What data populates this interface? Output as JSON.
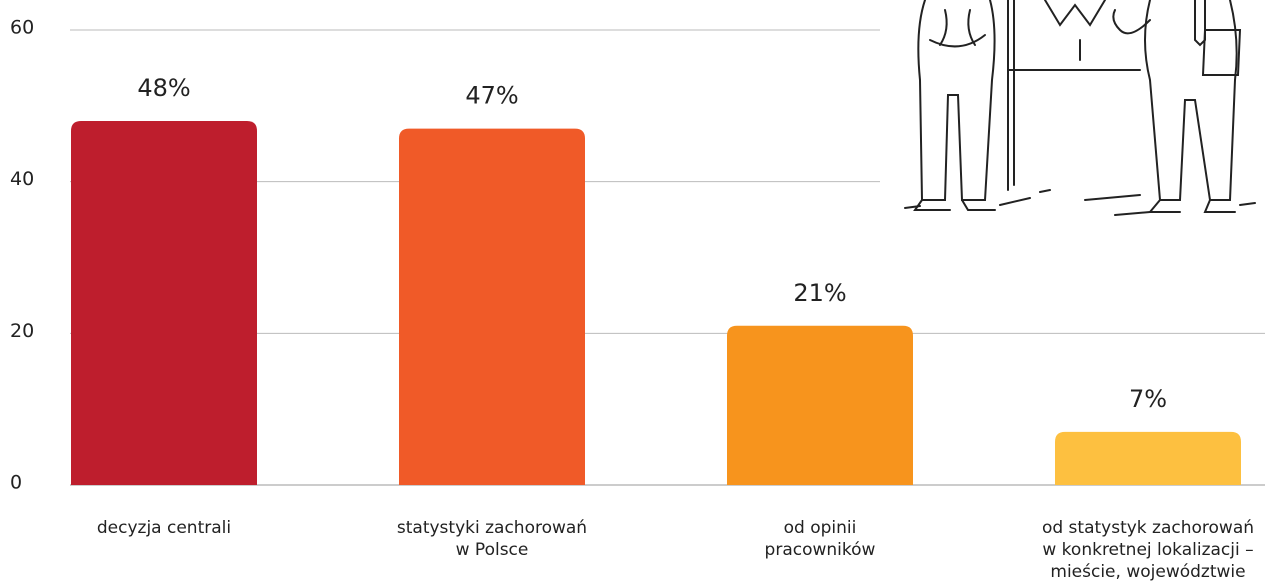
{
  "chart_data": {
    "type": "bar",
    "categories": [
      "decyzja centrali",
      "statystyki zachorowań\nw Polsce",
      "od opinii\npracowników",
      "od statystyk zachorowań\nw konkretnej lokalizacji –\nmieście, województwie"
    ],
    "values": [
      48,
      47,
      21,
      7
    ],
    "value_labels": [
      "48%",
      "47%",
      "21%",
      "7%"
    ],
    "colors": [
      "#be1e2d",
      "#f05a28",
      "#f7941d",
      "#fdc040"
    ],
    "ylim": [
      0,
      60
    ],
    "yticks": [
      0,
      20,
      40,
      60
    ],
    "grid": true
  }
}
